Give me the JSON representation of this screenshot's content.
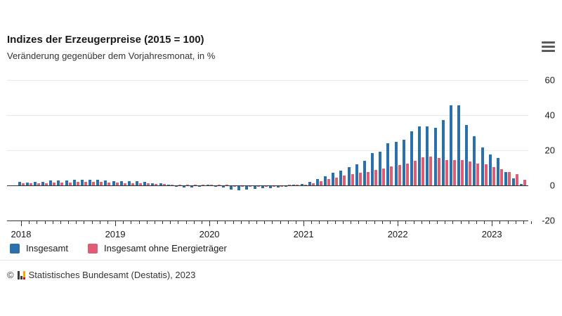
{
  "header": {
    "title": "Indizes der Erzeugerpreise (2015 = 100)",
    "subtitle": "Veränderung gegenüber dem Vorjahresmonat, in %",
    "menu_icon": "hamburger-menu-icon"
  },
  "footer": {
    "copyright": "© Statistisches Bundesamt (Destatis), 2023",
    "logo_icon": "destatis-bar-chart-icon"
  },
  "chart_data": {
    "type": "bar",
    "title": "Indizes der Erzeugerpreise (2015 = 100)",
    "subtitle": "Veränderung gegenüber dem Vorjahresmonat, in %",
    "unit": "%",
    "grid": "horizontal-lines-on",
    "legend_position": "bottom-left",
    "y_axis": {
      "side": "right",
      "min": -20,
      "max": 60,
      "ticks": [
        60,
        40,
        20,
        0,
        -20
      ]
    },
    "x_axis": {
      "year_labels": [
        "2018",
        "2019",
        "2020",
        "2021",
        "2022",
        "2023"
      ],
      "tick_interval": "month"
    },
    "x": [
      "2018-01",
      "2018-02",
      "2018-03",
      "2018-04",
      "2018-05",
      "2018-06",
      "2018-07",
      "2018-08",
      "2018-09",
      "2018-10",
      "2018-11",
      "2018-12",
      "2019-01",
      "2019-02",
      "2019-03",
      "2019-04",
      "2019-05",
      "2019-06",
      "2019-07",
      "2019-08",
      "2019-09",
      "2019-10",
      "2019-11",
      "2019-12",
      "2020-01",
      "2020-02",
      "2020-03",
      "2020-04",
      "2020-05",
      "2020-06",
      "2020-07",
      "2020-08",
      "2020-09",
      "2020-10",
      "2020-11",
      "2020-12",
      "2021-01",
      "2021-02",
      "2021-03",
      "2021-04",
      "2021-05",
      "2021-06",
      "2021-07",
      "2021-08",
      "2021-09",
      "2021-10",
      "2021-11",
      "2021-12",
      "2022-01",
      "2022-02",
      "2022-03",
      "2022-04",
      "2022-05",
      "2022-06",
      "2022-07",
      "2022-08",
      "2022-09",
      "2022-10",
      "2022-11",
      "2022-12",
      "2023-01",
      "2023-02",
      "2023-03",
      "2023-04",
      "2023-05"
    ],
    "series": [
      {
        "name": "Insgesamt",
        "color": "#2a70ad",
        "values": [
          2.1,
          1.8,
          1.9,
          2.0,
          2.7,
          3.0,
          3.0,
          3.1,
          3.2,
          3.3,
          3.3,
          2.7,
          2.6,
          2.6,
          2.4,
          2.5,
          1.9,
          1.2,
          1.1,
          0.3,
          -0.1,
          -0.6,
          -0.7,
          -0.2,
          0.2,
          -0.1,
          -0.8,
          -1.9,
          -2.2,
          -1.8,
          -1.7,
          -1.2,
          -1.0,
          -0.7,
          -0.5,
          0.2,
          0.9,
          1.9,
          3.7,
          5.2,
          7.2,
          8.5,
          10.4,
          12.0,
          14.2,
          18.4,
          19.2,
          24.2,
          25.0,
          25.9,
          30.9,
          33.5,
          33.6,
          32.7,
          37.2,
          45.8,
          45.8,
          34.5,
          28.2,
          21.6,
          17.8,
          15.8,
          7.5,
          4.1,
          1.0
        ]
      },
      {
        "name": "Insgesamt ohne Energieträger",
        "color": "#e05c75",
        "values": [
          1.4,
          1.2,
          1.3,
          1.4,
          1.6,
          1.8,
          1.8,
          1.9,
          1.9,
          2.0,
          1.9,
          1.6,
          1.5,
          1.4,
          1.3,
          1.2,
          1.1,
          0.9,
          0.8,
          0.6,
          0.5,
          0.4,
          0.3,
          0.3,
          0.3,
          0.2,
          0.0,
          -0.3,
          -0.5,
          -0.4,
          -0.4,
          -0.3,
          -0.2,
          -0.1,
          0.0,
          0.2,
          0.6,
          1.2,
          2.5,
          3.6,
          4.6,
          5.5,
          6.4,
          7.1,
          7.8,
          8.9,
          9.5,
          11.0,
          11.6,
          12.3,
          14.0,
          16.0,
          16.5,
          15.5,
          14.6,
          14.4,
          14.3,
          13.6,
          12.6,
          12.0,
          10.4,
          9.2,
          7.6,
          6.4,
          3.2
        ]
      }
    ]
  }
}
